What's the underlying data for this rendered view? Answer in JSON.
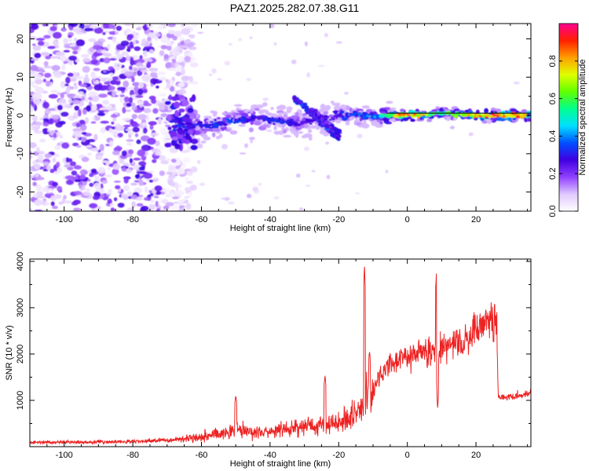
{
  "title": "PAZ1.2025.282.07.38.G11",
  "chart_data": [
    {
      "type": "heatmap",
      "xlabel": "Height of straight line (km)",
      "ylabel": "Frequency (Hz)",
      "xlim": [
        -110,
        36
      ],
      "ylim": [
        -25,
        24
      ],
      "x_ticks": [
        -100,
        -80,
        -60,
        -40,
        -20,
        0,
        20
      ],
      "x_tick_labels": [
        "-100",
        "-80",
        "-60",
        "-40",
        "-20",
        "0",
        "20"
      ],
      "y_ticks": [
        -20,
        -10,
        0,
        10,
        20
      ],
      "y_tick_labels": [
        "-20",
        "-10",
        "0",
        "10",
        "20"
      ],
      "colorbar": {
        "label": "Normalized spectral amplitude",
        "range": [
          0,
          1
        ],
        "ticks": [
          0.0,
          0.2,
          0.4,
          0.6,
          0.8
        ],
        "tick_labels": [
          "0.0",
          "0.2",
          "0.4",
          "0.6",
          "0.8"
        ],
        "colors": [
          "#ffffff",
          "#e0c8ff",
          "#9040ff",
          "#4000e0",
          "#0050ff",
          "#00e0ff",
          "#00ff90",
          "#60ff00",
          "#e0ff00",
          "#ffa000",
          "#ff2000",
          "#ff0090"
        ]
      },
      "ridge": [
        {
          "x": -68,
          "y": -2.7,
          "amp": 0.3
        },
        {
          "x": -62,
          "y": -2.8,
          "amp": 0.35
        },
        {
          "x": -57,
          "y": -2.5,
          "amp": 0.32
        },
        {
          "x": -52,
          "y": -1.5,
          "amp": 0.35
        },
        {
          "x": -47,
          "y": -0.8,
          "amp": 0.32
        },
        {
          "x": -42,
          "y": -1.0,
          "amp": 0.3
        },
        {
          "x": -38,
          "y": -1.4,
          "amp": 0.32
        },
        {
          "x": -34,
          "y": -1.8,
          "amp": 0.28
        },
        {
          "x": -30,
          "y": -1.9,
          "amp": 0.26
        },
        {
          "x": -25,
          "y": -1.0,
          "amp": 0.24
        },
        {
          "x": -20,
          "y": 0.2,
          "amp": 0.3
        },
        {
          "x": -15,
          "y": 0.0,
          "amp": 0.34
        },
        {
          "x": -10,
          "y": -0.3,
          "amp": 0.4
        },
        {
          "x": -5,
          "y": 0.0,
          "amp": 0.65
        },
        {
          "x": 0,
          "y": 0.0,
          "amp": 0.95
        },
        {
          "x": 4,
          "y": 0.0,
          "amp": 0.8
        },
        {
          "x": 8,
          "y": 0.5,
          "amp": 0.55
        },
        {
          "x": 12,
          "y": 0.6,
          "amp": 0.6
        },
        {
          "x": 16,
          "y": 0.2,
          "amp": 0.7
        },
        {
          "x": 20,
          "y": 0.0,
          "amp": 0.82
        },
        {
          "x": 24,
          "y": 0.0,
          "amp": 0.88
        },
        {
          "x": 28,
          "y": 0.0,
          "amp": 0.85
        },
        {
          "x": 32,
          "y": 0.0,
          "amp": 0.9
        },
        {
          "x": 35,
          "y": 0.0,
          "amp": 0.88
        }
      ],
      "diagonal_streaks": [
        {
          "x0": -33,
          "y0": 4.8,
          "x1": -20,
          "y1": -6.0,
          "amp": 0.35
        },
        {
          "x0": -28,
          "y0": 1.5,
          "x1": -20,
          "y1": -4.5,
          "amp": 0.28
        }
      ],
      "noise_region": {
        "x0": -110,
        "x1": -68,
        "amp_max": 0.25
      }
    },
    {
      "type": "line",
      "xlabel": "Height of straight line (km)",
      "ylabel": "SNR (10 * v/v)",
      "xlim": [
        -110,
        36
      ],
      "ylim": [
        0,
        4050
      ],
      "x_ticks": [
        -100,
        -80,
        -60,
        -40,
        -20,
        0,
        20
      ],
      "x_tick_labels": [
        "-100",
        "-80",
        "-60",
        "-40",
        "-20",
        "0",
        "20"
      ],
      "y_ticks": [
        1000,
        2000,
        3000,
        4000
      ],
      "y_tick_labels": [
        "1000",
        "2000",
        "3000",
        "4000"
      ],
      "color": "#ee2222",
      "trend": [
        {
          "x": -110,
          "y": 90
        },
        {
          "x": -90,
          "y": 100
        },
        {
          "x": -80,
          "y": 110
        },
        {
          "x": -70,
          "y": 140
        },
        {
          "x": -62,
          "y": 200
        },
        {
          "x": -55,
          "y": 280
        },
        {
          "x": -50,
          "y": 380
        },
        {
          "x": -45,
          "y": 320
        },
        {
          "x": -40,
          "y": 300
        },
        {
          "x": -35,
          "y": 380
        },
        {
          "x": -30,
          "y": 440
        },
        {
          "x": -25,
          "y": 480
        },
        {
          "x": -20,
          "y": 520
        },
        {
          "x": -16,
          "y": 700
        },
        {
          "x": -13,
          "y": 800
        },
        {
          "x": -12,
          "y": 1100
        },
        {
          "x": -10,
          "y": 1250
        },
        {
          "x": -7,
          "y": 1600
        },
        {
          "x": -5,
          "y": 1800
        },
        {
          "x": 0,
          "y": 1950
        },
        {
          "x": 5,
          "y": 2050
        },
        {
          "x": 8,
          "y": 2050
        },
        {
          "x": 12,
          "y": 2150
        },
        {
          "x": 16,
          "y": 2250
        },
        {
          "x": 19,
          "y": 2450
        },
        {
          "x": 22,
          "y": 2700
        },
        {
          "x": 26,
          "y": 2800
        },
        {
          "x": 26.5,
          "y": 1050
        },
        {
          "x": 30,
          "y": 1080
        },
        {
          "x": 36,
          "y": 1150
        }
      ],
      "spikes": [
        {
          "x": -50,
          "y": 1100
        },
        {
          "x": -24,
          "y": 1550
        },
        {
          "x": -12.5,
          "y": 3950
        },
        {
          "x": -11,
          "y": 2050
        },
        {
          "x": 8.5,
          "y": 3800
        },
        {
          "x": 8.8,
          "y": 800
        }
      ]
    }
  ]
}
